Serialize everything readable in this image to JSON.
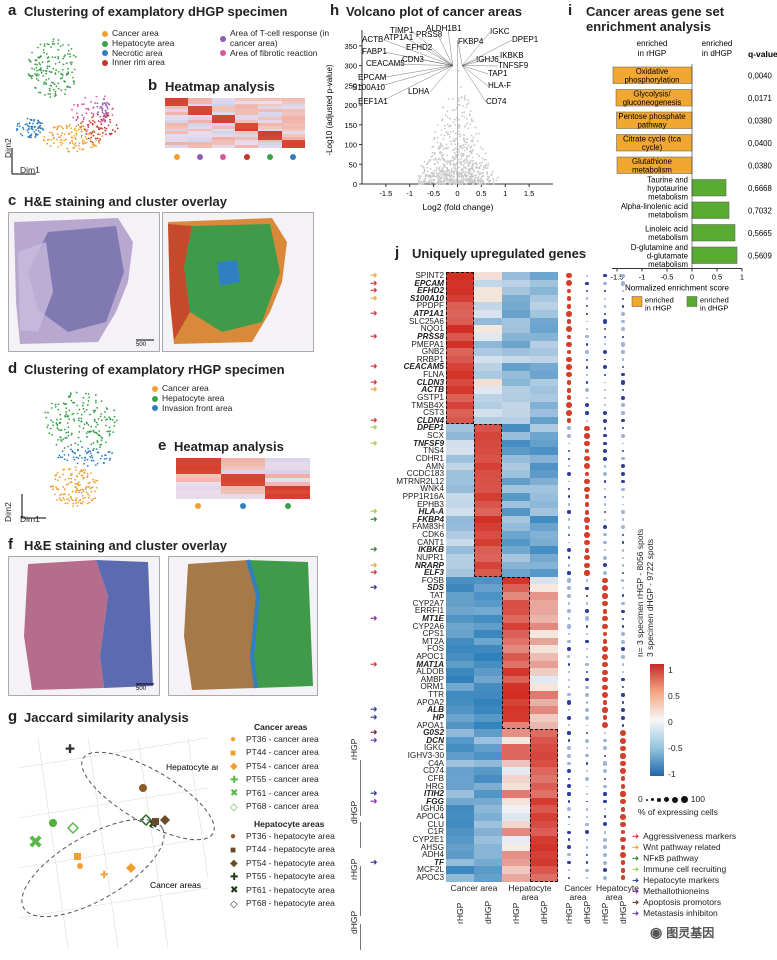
{
  "panel_a": {
    "letter": "a",
    "title": "Clustering of examplatory dHGP specimen",
    "legend": [
      {
        "label": "Cancer area",
        "color": "#f0a030"
      },
      {
        "label": "Hepatocyte area",
        "color": "#3aa04a"
      },
      {
        "label": "Necrotic area",
        "color": "#2f7fc1"
      },
      {
        "label": "Inner rim area",
        "color": "#c0392b"
      },
      {
        "label": "Area of T-cell response (in cancer area)",
        "color": "#8e5bb5"
      },
      {
        "label": "Area of fibrotic reaction",
        "color": "#d35aa0"
      }
    ],
    "dim1": "Dim1",
    "dim2": "Dim2"
  },
  "panel_b": {
    "letter": "b",
    "title": "Heatmap analysis",
    "dot_colors": [
      "#f0a030",
      "#8e5bb5",
      "#d35aa0",
      "#c0392b",
      "#3aa04a",
      "#2f7fc1"
    ]
  },
  "panel_c": {
    "letter": "c",
    "title": "H&E staining and cluster overlay",
    "scale": "500"
  },
  "panel_d": {
    "letter": "d",
    "title": "Clustering of examplatory rHGP specimen",
    "legend": [
      {
        "label": "Cancer area",
        "color": "#f0a030"
      },
      {
        "label": "Hepatocyte area",
        "color": "#3aa04a"
      },
      {
        "label": "Invasion front area",
        "color": "#2f7fc1"
      }
    ],
    "dim1": "Dim1",
    "dim2": "Dim2"
  },
  "panel_e": {
    "letter": "e",
    "title": "Heatmap analysis",
    "dot_colors": [
      "#f0a030",
      "#2f7fc1",
      "#3aa04a"
    ]
  },
  "panel_f": {
    "letter": "f",
    "title": "H&E staining and cluster overlay",
    "scale": "500"
  },
  "panel_g": {
    "letter": "g",
    "title": "Jaccard similarity analysis",
    "hep_label": "Hepatocyte areas",
    "cancer_label": "Cancer areas",
    "cancer_header": "Cancer areas",
    "hep_header": "Hepatocyte areas",
    "cancer_items": [
      "PT36 - cancer area",
      "PT44 - cancer area",
      "PT54 - cancer area",
      "PT55 - cancer area",
      "PT61 - cancer area",
      "PT68 - cancer area"
    ],
    "hep_items": [
      "PT36 - hepatocyte area",
      "PT44 - hepatocyte area",
      "PT54 - hepatocyte area",
      "PT55 - hepatocyte area",
      "PT61 - hepatocyte area",
      "PT68 - hepatocyte area"
    ],
    "rhgp": "rHGP",
    "dhgp": "dHGP"
  },
  "panel_h": {
    "letter": "h",
    "title": "Volcano plot of cancer areas",
    "ylabel": "-Log10 (adjusted p-value)",
    "xlabel": "Log2 (fold change)",
    "genes_left": [
      "TIMP1",
      "ALDH1B1",
      "ACTB",
      "ATP1A1",
      "PRSS8",
      "FABP1",
      "EFHD2",
      "CEACAM5",
      "CDN3",
      "EPCAM",
      "S100A10",
      "LDHA",
      "EEF1A1"
    ],
    "genes_right": [
      "FKBP4",
      "IGKC",
      "DPEP1",
      "IGHJ6",
      "IKBKB",
      "TNFSF9",
      "TAP1",
      "HLA-F",
      "CD74"
    ],
    "yticks": [
      "0",
      "50",
      "100",
      "150",
      "200",
      "250",
      "300",
      "350"
    ],
    "xticks": [
      "-1.5",
      "-1",
      "-0.5",
      "0",
      "0.5",
      "1",
      "1.5"
    ]
  },
  "panel_i": {
    "letter": "i",
    "title_line1": "Cancer areas gene set",
    "title_line2": "enrichment analysis",
    "left_header": "enriched in rHGP",
    "right_header": "enriched in dHGP",
    "qheader": "q-value",
    "xlabel": "Normalized enrichment score",
    "xticks": [
      "-1.5",
      "-1",
      "-0.5",
      "0",
      "0.5",
      "1"
    ],
    "legend_rhgp": "enriched in rHGP",
    "legend_dhgp": "enriched in dHGP"
  },
  "chart_data": {
    "type": "bar",
    "title": "Cancer areas gene set enrichment analysis",
    "xlabel": "Normalized enrichment score",
    "xlim": [
      -1.6,
      1.0
    ],
    "categories": [
      "Oxidative phosphorylation",
      "Glycolysis/ gluconeogenesis",
      "Pentose phosphate pathway",
      "Citrate cycle (tca cycle)",
      "Glutathione metabolism",
      "Taurine and hypotaurine metabolism",
      "Alpha-linolenic acid metabolism",
      "Linoleic acid metabolism",
      "D-glutamine and d-glutamate metabolism"
    ],
    "values": [
      -1.58,
      -1.52,
      -1.51,
      -1.51,
      -1.5,
      0.68,
      0.74,
      0.86,
      0.9
    ],
    "qvalues": [
      "0,0040",
      "0,0171",
      "0,0380",
      "0,0400",
      "0,0380",
      "0,6668",
      "0,7032",
      "0,5665",
      "0,5609"
    ],
    "colors": {
      "rHGP": "#f0a830",
      "dHGP": "#5aab32"
    }
  },
  "panel_j": {
    "letter": "j",
    "title": "Uniquely upregulated genes",
    "genes": [
      {
        "n": "SPINT2",
        "b": false
      },
      {
        "n": "EPCAM",
        "b": true
      },
      {
        "n": "EFHD2",
        "b": true
      },
      {
        "n": "S100A10",
        "b": true
      },
      {
        "n": "PPDPF",
        "b": false
      },
      {
        "n": "ATP1A1",
        "b": true
      },
      {
        "n": "SLC25A6",
        "b": false
      },
      {
        "n": "NQO1",
        "b": false
      },
      {
        "n": "PRSS8",
        "b": true
      },
      {
        "n": "PMEPA1",
        "b": false
      },
      {
        "n": "GNB2",
        "b": false
      },
      {
        "n": "RRBP1",
        "b": false
      },
      {
        "n": "CEACAM5",
        "b": true
      },
      {
        "n": "FLNA",
        "b": false
      },
      {
        "n": "CLDN3",
        "b": true
      },
      {
        "n": "ACTB",
        "b": true
      },
      {
        "n": "GSTP1",
        "b": false
      },
      {
        "n": "TMSB4X",
        "b": false
      },
      {
        "n": "CST3",
        "b": false
      },
      {
        "n": "CLDN4",
        "b": true
      },
      {
        "n": "DPEP1",
        "b": true
      },
      {
        "n": "SCX",
        "b": false
      },
      {
        "n": "TNFSF9",
        "b": true
      },
      {
        "n": "TNS4",
        "b": false
      },
      {
        "n": "CDHR1",
        "b": false
      },
      {
        "n": "AMN",
        "b": false
      },
      {
        "n": "CCDC183",
        "b": false
      },
      {
        "n": "MTRNR2L12",
        "b": false
      },
      {
        "n": "WNK4",
        "b": false
      },
      {
        "n": "PPP1R16A",
        "b": false
      },
      {
        "n": "EPHB3",
        "b": false
      },
      {
        "n": "HLA-A",
        "b": true
      },
      {
        "n": "FKBP4",
        "b": true
      },
      {
        "n": "FAM83H",
        "b": false
      },
      {
        "n": "CDK6",
        "b": false
      },
      {
        "n": "CANT1",
        "b": false
      },
      {
        "n": "IKBKB",
        "b": true
      },
      {
        "n": "NUPR1",
        "b": false
      },
      {
        "n": "NRARP",
        "b": true
      },
      {
        "n": "ELF3",
        "b": true
      },
      {
        "n": "FOSB",
        "b": false
      },
      {
        "n": "SDS",
        "b": true
      },
      {
        "n": "TAT",
        "b": false
      },
      {
        "n": "CYP2A7",
        "b": false
      },
      {
        "n": "ERRFI1",
        "b": false
      },
      {
        "n": "MT1E",
        "b": true
      },
      {
        "n": "CYP2A6",
        "b": false
      },
      {
        "n": "CPS1",
        "b": false
      },
      {
        "n": "MT2A",
        "b": false
      },
      {
        "n": "FOS",
        "b": false
      },
      {
        "n": "APOC1",
        "b": false
      },
      {
        "n": "MAT1A",
        "b": true
      },
      {
        "n": "ALDOB",
        "b": false
      },
      {
        "n": "AMBP",
        "b": false
      },
      {
        "n": "ORM1",
        "b": false
      },
      {
        "n": "TTR",
        "b": false
      },
      {
        "n": "APOA2",
        "b": false
      },
      {
        "n": "ALB",
        "b": true
      },
      {
        "n": "HP",
        "b": true
      },
      {
        "n": "APOA1",
        "b": false
      },
      {
        "n": "G0S2",
        "b": true
      },
      {
        "n": "DCN",
        "b": true
      },
      {
        "n": "IGKC",
        "b": false
      },
      {
        "n": "IGHV3-30",
        "b": false
      },
      {
        "n": "C4A",
        "b": false
      },
      {
        "n": "CD74",
        "b": false
      },
      {
        "n": "CFB",
        "b": false
      },
      {
        "n": "HRG",
        "b": false
      },
      {
        "n": "ITIH2",
        "b": true
      },
      {
        "n": "FGG",
        "b": true
      },
      {
        "n": "IGHJ6",
        "b": false
      },
      {
        "n": "APOC4",
        "b": false
      },
      {
        "n": "CLU",
        "b": false
      },
      {
        "n": "C1R",
        "b": false
      },
      {
        "n": "CYP2E1",
        "b": false
      },
      {
        "n": "AHSG",
        "b": false
      },
      {
        "n": "ADH4",
        "b": false
      },
      {
        "n": "TF",
        "b": true
      },
      {
        "n": "MCF2L",
        "b": false
      },
      {
        "n": "APOC3",
        "b": false
      }
    ],
    "col_labels": [
      "rHGP",
      "dHGP",
      "rHGP",
      "dHGP",
      "rHGP",
      "dHGP",
      "rHGP",
      "dHGP"
    ],
    "group_cancer": "Cancer area",
    "group_hep": "Hepatocyte area",
    "dot_group_cancer": "Cancer area",
    "dot_group_hep": "Hepatocyte area",
    "side_note_1": "n= 3 specimen rHGP - 8056 spots",
    "side_note_2": "3 specimen dHGP - 9722 spots",
    "colorbar_ticks": [
      "1",
      "0.5",
      "0",
      "-0.5",
      "-1"
    ],
    "size_legend_0": "0",
    "size_legend_100": "100",
    "size_legend_label": "% of expressing cells",
    "markers": [
      {
        "label": "Aggressiveness markers",
        "color": "#d32f2f"
      },
      {
        "label": "Wnt pathway related",
        "color": "#f0a030"
      },
      {
        "label": "NFκB pathway",
        "color": "#2e7d32"
      },
      {
        "label": "Immune cell recruiting",
        "color": "#9ccc45"
      },
      {
        "label": "Hepatocyte markers",
        "color": "#283593"
      },
      {
        "label": "Methallothioneins",
        "color": "#8e24aa"
      },
      {
        "label": "Apoptosis promotors",
        "color": "#6d1b1b"
      },
      {
        "label": "Metastasis inhibiton",
        "color": "#5e35b1"
      }
    ]
  },
  "watermark": "图灵基因"
}
